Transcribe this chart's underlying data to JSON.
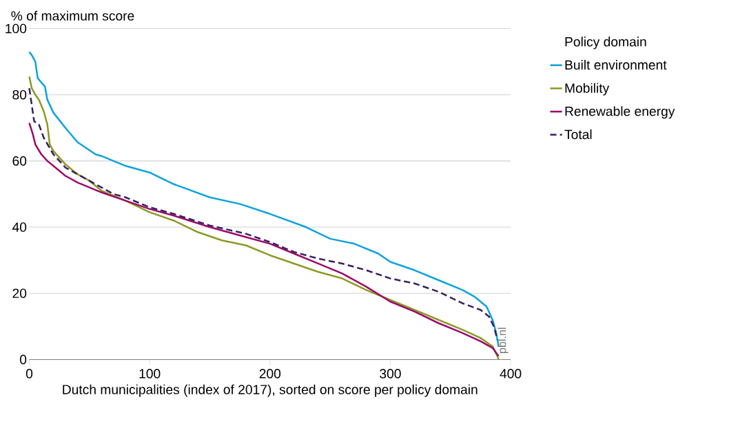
{
  "chart_data": {
    "type": "line",
    "ylabel": "% of maximum score",
    "xlabel": "Dutch municipalities (index of 2017), sorted on score per policy domain",
    "legend_title": "Policy domain",
    "legend": "top right",
    "grid": "y",
    "xlim": [
      0,
      400
    ],
    "ylim": [
      0,
      100
    ],
    "xticks": [
      0,
      100,
      200,
      300,
      400
    ],
    "yticks": [
      0,
      20,
      40,
      60,
      80,
      100
    ],
    "annotations": [
      "pbl.nl"
    ],
    "series": [
      {
        "name": "Built environment",
        "color": "#0ea3dc",
        "line_style": "solid",
        "x": [
          0,
          2,
          5,
          7,
          10,
          13,
          15,
          20,
          30,
          40,
          55,
          60,
          80,
          100,
          120,
          150,
          175,
          200,
          230,
          250,
          270,
          290,
          300,
          320,
          340,
          360,
          370,
          380,
          385,
          388,
          390
        ],
        "values": [
          93,
          92,
          90,
          85,
          83.7,
          82.5,
          78.5,
          74.6,
          70,
          65.7,
          62,
          61.5,
          58.5,
          56.5,
          53,
          49,
          47,
          44,
          40,
          36.5,
          35,
          32,
          29.5,
          27,
          24,
          21,
          19,
          16,
          12,
          8,
          4
        ]
      },
      {
        "name": "Mobility",
        "color": "#8c9a24",
        "line_style": "solid",
        "x": [
          0,
          2,
          5,
          8,
          12,
          15,
          17,
          20,
          25,
          30,
          40,
          50,
          60,
          80,
          100,
          120,
          140,
          160,
          180,
          200,
          220,
          240,
          260,
          280,
          300,
          320,
          340,
          360,
          375,
          385,
          389,
          390
        ],
        "values": [
          85.5,
          82,
          80,
          78.5,
          75,
          71,
          65,
          63,
          61,
          59,
          56,
          54,
          51,
          48,
          44.5,
          42,
          38.5,
          36,
          34.5,
          31.5,
          29,
          26.5,
          24.5,
          21,
          18,
          15,
          12,
          9,
          6.5,
          4,
          1,
          0
        ]
      },
      {
        "name": "Renewable energy",
        "color": "#9c0a6a",
        "line_style": "solid",
        "x": [
          0,
          3,
          5,
          10,
          15,
          20,
          30,
          40,
          50,
          60,
          80,
          100,
          120,
          150,
          180,
          200,
          220,
          240,
          260,
          280,
          300,
          320,
          340,
          360,
          375,
          385,
          390
        ],
        "values": [
          71.5,
          68,
          65,
          62,
          60,
          58.5,
          55.5,
          53.5,
          52,
          50.5,
          48,
          45.5,
          43.5,
          40,
          37,
          35,
          32,
          29,
          26,
          22,
          17.5,
          14.5,
          11,
          8,
          5.5,
          3.5,
          1
        ]
      },
      {
        "name": "Total",
        "color": "#3b1f5e",
        "line_style": "dashed",
        "x": [
          0,
          2,
          4,
          8,
          12,
          20,
          30,
          40,
          50,
          60,
          70,
          80,
          100,
          120,
          150,
          180,
          200,
          220,
          240,
          260,
          280,
          300,
          320,
          340,
          360,
          375,
          382,
          386,
          389
        ],
        "values": [
          82,
          77,
          72,
          71,
          67,
          62,
          58,
          56,
          54,
          52,
          50,
          49,
          46,
          44,
          40.5,
          38,
          35.5,
          32.5,
          30.5,
          29,
          27,
          24.5,
          23,
          20.5,
          17,
          15,
          13,
          10,
          6
        ]
      }
    ]
  }
}
